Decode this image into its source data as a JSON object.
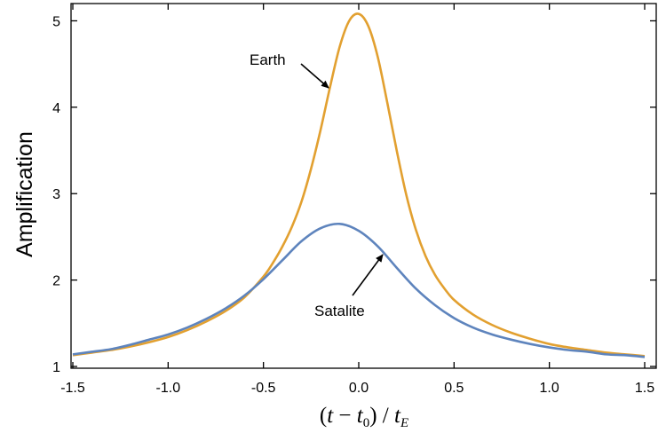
{
  "chart_data": {
    "type": "line",
    "title": "",
    "ylabel": "Amplification",
    "xlabel": "(t - t0) / tE",
    "xlim": [
      -1.5,
      1.5
    ],
    "ylim": [
      1,
      5.2
    ],
    "xticks": [
      -1.5,
      -1.0,
      -0.5,
      0.0,
      0.5,
      1.0,
      1.5
    ],
    "xtick_labels": [
      "-1.5",
      "-1.0",
      "-0.5",
      "0.0",
      "0.5",
      "1.0",
      "1.5"
    ],
    "yticks": [
      1,
      2,
      3,
      4,
      5
    ],
    "ytick_labels": [
      "1",
      "2",
      "3",
      "4",
      "5"
    ],
    "grid": false,
    "legend": "none",
    "series": [
      {
        "name": "Earth",
        "color": "#e2a030",
        "x": [
          -1.5,
          -1.4,
          -1.3,
          -1.2,
          -1.1,
          -1.0,
          -0.9,
          -0.8,
          -0.7,
          -0.6,
          -0.5,
          -0.45,
          -0.4,
          -0.35,
          -0.3,
          -0.25,
          -0.2,
          -0.15,
          -0.1,
          -0.05,
          0.0,
          0.05,
          0.1,
          0.15,
          0.2,
          0.25,
          0.3,
          0.35,
          0.4,
          0.45,
          0.5,
          0.6,
          0.7,
          0.8,
          0.9,
          1.0,
          1.1,
          1.2,
          1.3,
          1.4,
          1.5
        ],
        "y": [
          1.13,
          1.16,
          1.19,
          1.23,
          1.28,
          1.34,
          1.42,
          1.52,
          1.64,
          1.8,
          2.04,
          2.2,
          2.39,
          2.62,
          2.91,
          3.29,
          3.74,
          4.24,
          4.7,
          5.0,
          5.08,
          4.94,
          4.58,
          4.05,
          3.49,
          2.98,
          2.58,
          2.28,
          2.06,
          1.9,
          1.77,
          1.6,
          1.48,
          1.39,
          1.32,
          1.26,
          1.22,
          1.19,
          1.16,
          1.14,
          1.12
        ]
      },
      {
        "name": "Satalite",
        "color": "#5e84bd",
        "x": [
          -1.5,
          -1.4,
          -1.3,
          -1.2,
          -1.1,
          -1.0,
          -0.9,
          -0.8,
          -0.7,
          -0.6,
          -0.5,
          -0.4,
          -0.3,
          -0.2,
          -0.1,
          0.0,
          0.1,
          0.2,
          0.3,
          0.4,
          0.5,
          0.6,
          0.7,
          0.8,
          0.9,
          1.0,
          1.1,
          1.2,
          1.3,
          1.4,
          1.5
        ],
        "y": [
          1.14,
          1.17,
          1.2,
          1.25,
          1.31,
          1.37,
          1.45,
          1.55,
          1.67,
          1.82,
          2.01,
          2.23,
          2.45,
          2.6,
          2.65,
          2.57,
          2.39,
          2.14,
          1.9,
          1.71,
          1.56,
          1.45,
          1.37,
          1.31,
          1.26,
          1.22,
          1.19,
          1.17,
          1.14,
          1.13,
          1.11
        ]
      }
    ],
    "annotations": [
      {
        "text": "Earth",
        "target": [
          -0.17,
          4.2
        ]
      },
      {
        "text": "Satalite",
        "target": [
          0.12,
          2.31
        ]
      }
    ]
  }
}
